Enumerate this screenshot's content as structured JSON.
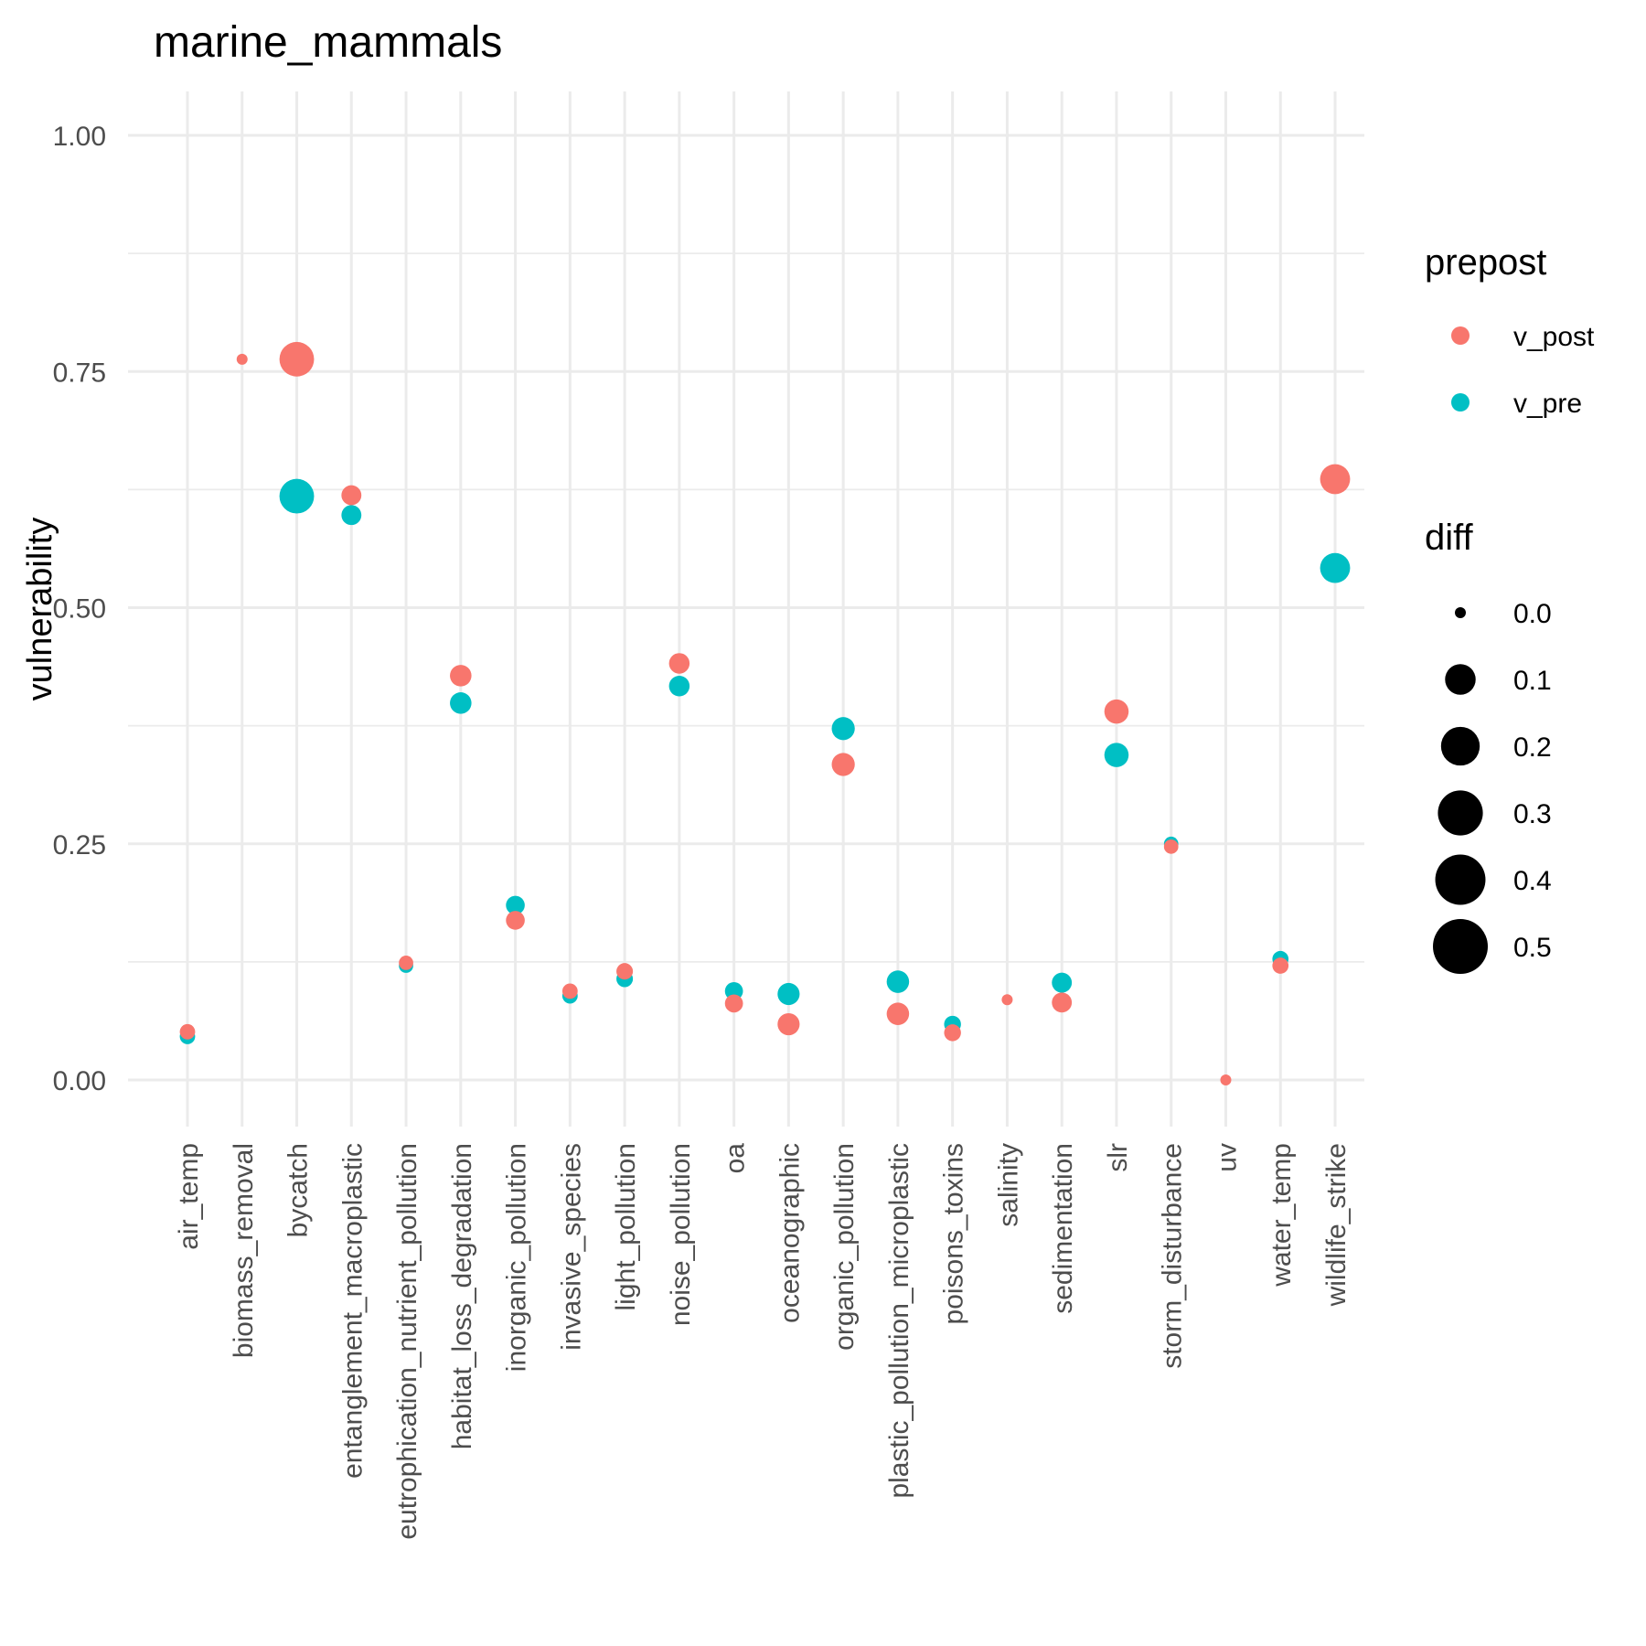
{
  "chart_data": {
    "type": "scatter",
    "title": "marine_mammals",
    "xlabel": "",
    "ylabel": "vulnerability",
    "ylim": [
      -0.05,
      1.05
    ],
    "yticks": [
      "0.00",
      "0.25",
      "0.50",
      "0.75",
      "1.00"
    ],
    "grid": true,
    "categories": [
      "air_temp",
      "biomass_removal",
      "bycatch",
      "entanglement_macroplastic",
      "eutrophication_nutrient_pollution",
      "habitat_loss_degradation",
      "inorganic_pollution",
      "invasive_species",
      "light_pollution",
      "noise_pollution",
      "oa",
      "oceanographic",
      "organic_pollution",
      "plastic_pollution_microplastic",
      "poisons_toxins",
      "salinity",
      "sedimentation",
      "slr",
      "storm_disturbance",
      "uv",
      "water_temp",
      "wildlife_strike"
    ],
    "series": [
      {
        "name": "v_pre",
        "color": "#00BFC4",
        "values": [
          0.046,
          null,
          0.618,
          0.598,
          0.121,
          0.399,
          0.185,
          0.089,
          0.107,
          0.417,
          0.094,
          0.091,
          0.372,
          0.104,
          0.059,
          null,
          0.103,
          0.344,
          0.25,
          null,
          0.128,
          0.542
        ]
      },
      {
        "name": "v_post",
        "color": "#F8766D",
        "values": [
          0.051,
          0.763,
          0.763,
          0.619,
          0.124,
          0.428,
          0.169,
          0.094,
          0.115,
          0.441,
          0.081,
          0.059,
          0.334,
          0.07,
          0.05,
          0.085,
          0.082,
          0.39,
          0.247,
          0.0,
          0.121,
          0.636
        ]
      }
    ],
    "diff": [
      0.005,
      0.0,
      0.145,
      0.021,
      0.003,
      0.029,
      0.016,
      0.005,
      0.008,
      0.024,
      0.013,
      0.032,
      0.038,
      0.034,
      0.009,
      0.0,
      0.021,
      0.046,
      0.003,
      0.0,
      0.007,
      0.094
    ],
    "legend": {
      "color_title": "prepost",
      "color_entries": [
        {
          "label": "v_post",
          "color": "#F8766D"
        },
        {
          "label": "v_pre",
          "color": "#00BFC4"
        }
      ],
      "size_title": "diff",
      "size_entries": [
        {
          "label": "0.0",
          "value": 0.0
        },
        {
          "label": "0.1",
          "value": 0.1
        },
        {
          "label": "0.2",
          "value": 0.2
        },
        {
          "label": "0.3",
          "value": 0.3
        },
        {
          "label": "0.4",
          "value": 0.4
        },
        {
          "label": "0.5",
          "value": 0.5
        }
      ],
      "position": "right"
    }
  }
}
